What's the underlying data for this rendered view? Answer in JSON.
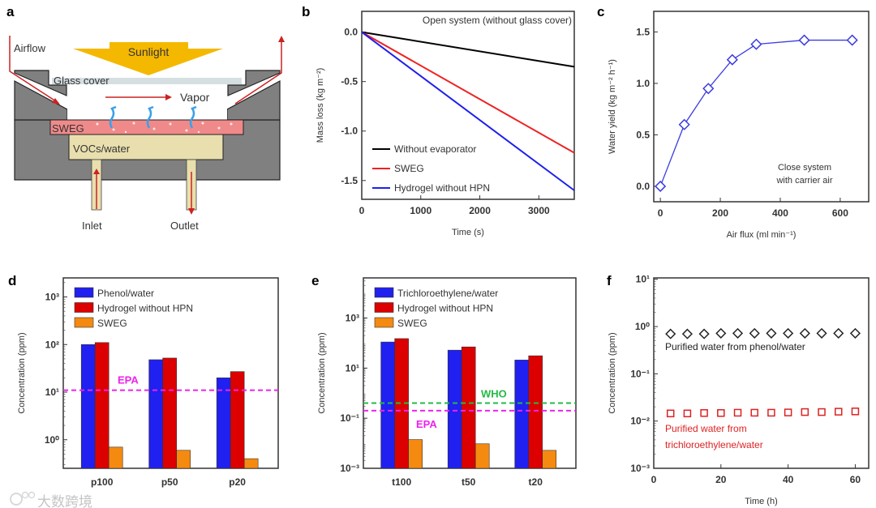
{
  "panel_a": {
    "label": "a",
    "airflow": "Airflow",
    "sunlight": "Sunlight",
    "glass_cover": "Glass cover",
    "vapor": "Vapor",
    "sweg": "SWEG",
    "vocs_water": "VOCs/water",
    "inlet": "Inlet",
    "outlet": "Outlet",
    "colors": {
      "sunlight": "#f5b800",
      "body": "#808080",
      "sweg": "#f08a8a",
      "water": "#e9dfae",
      "arrow": "#cc2222",
      "vapor": "#3aa0e8",
      "glass": "#d5dfe2"
    }
  },
  "watermark": "大数跨境",
  "chart_data": [
    {
      "panel": "b",
      "type": "line",
      "title": "Open system (without glass cover)",
      "xlabel": "Time (s)",
      "ylabel": "Mass loss (kg m⁻²)",
      "xlim": [
        0,
        3600
      ],
      "ylim": [
        -1.69,
        0.21
      ],
      "xticks": [
        0,
        1000,
        2000,
        3000
      ],
      "xtick_labels": [
        "0",
        "1000",
        "2000",
        "3000"
      ],
      "yticks": [
        0,
        -0.5,
        -1.0,
        -1.5
      ],
      "ytick_labels": [
        "0.0",
        "-0.5",
        "-1.0",
        "-1.5"
      ],
      "legend": "bottom-left",
      "series": [
        {
          "name": "Without evaporator",
          "color": "#000000",
          "x": [
            0,
            3600
          ],
          "y": [
            0,
            -0.35
          ]
        },
        {
          "name": "SWEG",
          "color": "#ee2222",
          "x": [
            0,
            3600
          ],
          "y": [
            0,
            -1.22
          ]
        },
        {
          "name": "Hydrogel without HPN",
          "color": "#1f1fee",
          "x": [
            0,
            3600
          ],
          "y": [
            0,
            -1.6
          ]
        }
      ]
    },
    {
      "panel": "c",
      "type": "line",
      "xlabel": "Air flux (ml min⁻¹)",
      "ylabel": "Water yield (kg m⁻² h⁻¹)",
      "xlim": [
        -22,
        695
      ],
      "ylim": [
        -0.15,
        1.7
      ],
      "xticks": [
        0,
        200,
        400,
        600
      ],
      "xtick_labels": [
        "0",
        "200",
        "400",
        "600"
      ],
      "yticks": [
        0,
        0.5,
        1.0,
        1.5
      ],
      "ytick_labels": [
        "0.0",
        "0.5",
        "1.0",
        "1.5"
      ],
      "annotation": [
        "Close system",
        "with carrier air"
      ],
      "series": [
        {
          "name": "Water yield",
          "color": "#3b3be0",
          "marker": "diamond",
          "x": [
            0,
            80,
            160,
            240,
            320,
            480,
            640
          ],
          "y": [
            0,
            0.6,
            0.95,
            1.23,
            1.38,
            1.42,
            1.42
          ]
        }
      ]
    },
    {
      "panel": "d",
      "type": "bar",
      "yscale": "log",
      "ylabel": "Concentration (ppm)",
      "ylim_log10": [
        -0.6,
        3.4
      ],
      "yticks_log10": [
        0,
        1,
        2,
        3
      ],
      "ytick_labels": [
        "10⁰",
        "10¹",
        "10²",
        "10³"
      ],
      "categories": [
        "p100",
        "p50",
        "p20"
      ],
      "legend": "top-left",
      "series": [
        {
          "name": "Phenol/water",
          "color": "#2020f0",
          "values": [
            100,
            48,
            20
          ]
        },
        {
          "name": "Hydrogel without HPN",
          "color": "#dd0000",
          "values": [
            110,
            52,
            27
          ]
        },
        {
          "name": "SWEG",
          "color": "#f58a10",
          "values": [
            0.7,
            0.6,
            0.4
          ]
        }
      ],
      "hlines": [
        {
          "name": "EPA",
          "value": 11,
          "color": "#ee22ee"
        }
      ]
    },
    {
      "panel": "e",
      "type": "bar",
      "yscale": "log",
      "ylabel": "Concentration (ppm)",
      "ylim_log10": [
        -3,
        4.6
      ],
      "yticks_log10": [
        -3,
        -1,
        1,
        3
      ],
      "ytick_labels": [
        "10⁻³",
        "10⁻¹",
        "10¹",
        "10³"
      ],
      "categories": [
        "t100",
        "t50",
        "t20"
      ],
      "legend": "top-left",
      "series": [
        {
          "name": "Trichloroethylene/water",
          "color": "#2020f0",
          "values": [
            110,
            52,
            21
          ]
        },
        {
          "name": "Hydrogel without HPN",
          "color": "#dd0000",
          "values": [
            150,
            70,
            31
          ]
        },
        {
          "name": "SWEG",
          "color": "#f58a10",
          "values": [
            0.014,
            0.0095,
            0.0052
          ]
        }
      ],
      "hlines": [
        {
          "name": "WHO",
          "value": 0.4,
          "color": "#22bb44"
        },
        {
          "name": "EPA",
          "value": 0.2,
          "color": "#ee22ee"
        }
      ]
    },
    {
      "panel": "f",
      "type": "scatter",
      "yscale": "log",
      "xlabel": "Time (h)",
      "ylabel": "Concentration (ppm)",
      "xlim": [
        0,
        64
      ],
      "ylim_log10": [
        -3,
        1.03
      ],
      "xticks": [
        0,
        20,
        40,
        60
      ],
      "xtick_labels": [
        "0",
        "20",
        "40",
        "60"
      ],
      "yticks_log10": [
        -3,
        -2,
        -1,
        0,
        1
      ],
      "ytick_labels": [
        "10⁻³",
        "10⁻²",
        "10⁻¹",
        "10⁰",
        "10¹"
      ],
      "series": [
        {
          "name": "Purified water from phenol/water",
          "label_lines": [
            "Purified water from phenol/water"
          ],
          "color": "#222222",
          "marker": "diamond",
          "x": [
            5,
            10,
            15,
            20,
            25,
            30,
            35,
            40,
            45,
            50,
            55,
            60
          ],
          "y": [
            0.7,
            0.7,
            0.7,
            0.72,
            0.72,
            0.72,
            0.72,
            0.72,
            0.72,
            0.72,
            0.72,
            0.72
          ]
        },
        {
          "name": "Purified water from trichloroethylene/water",
          "label_lines": [
            "Purified water from",
            "trichloroethylene/water"
          ],
          "color": "#dd2222",
          "marker": "square",
          "x": [
            5,
            10,
            15,
            20,
            25,
            30,
            35,
            40,
            45,
            50,
            55,
            60
          ],
          "y": [
            0.0145,
            0.0145,
            0.0148,
            0.0148,
            0.015,
            0.015,
            0.015,
            0.0152,
            0.0155,
            0.0155,
            0.0158,
            0.016
          ]
        }
      ]
    }
  ]
}
